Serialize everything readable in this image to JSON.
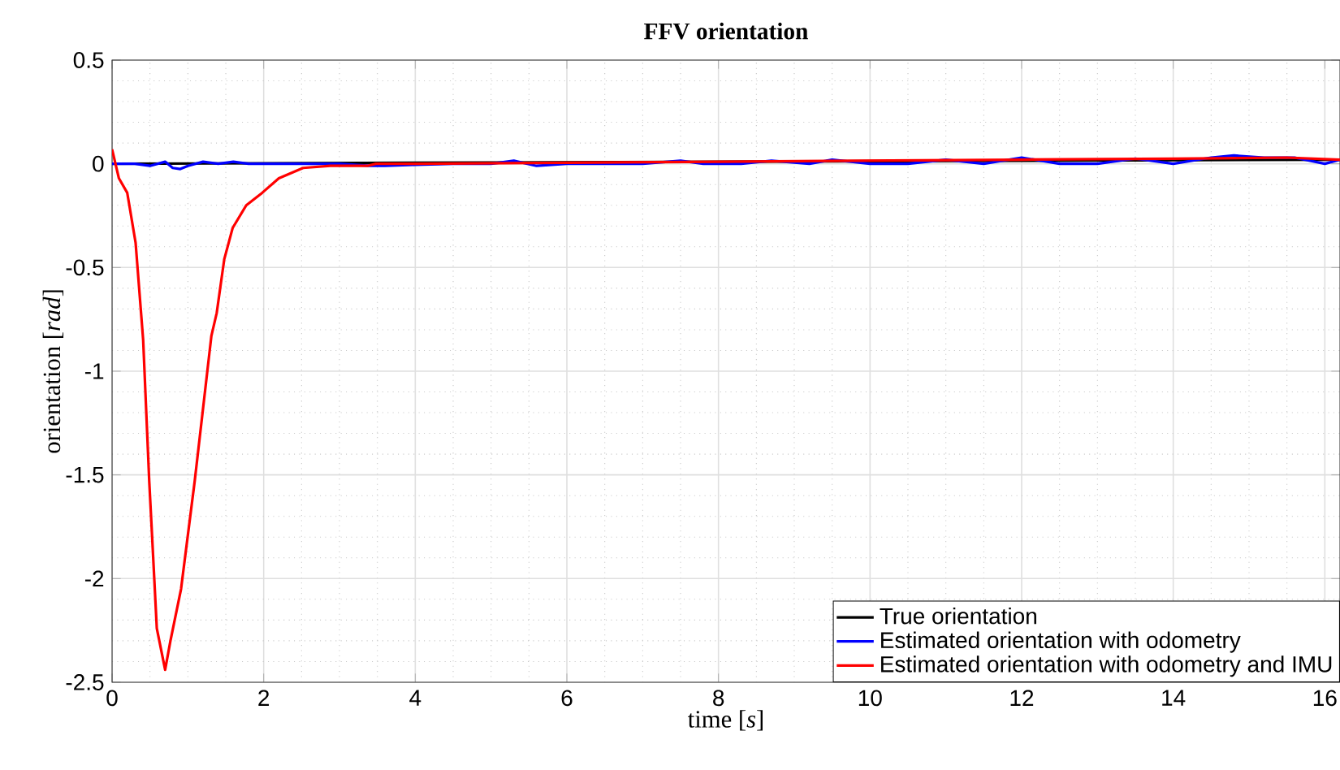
{
  "chart_data": {
    "type": "line",
    "title": "FFV orientation",
    "xlabel": "time [*s*]",
    "ylabel": "orientation [*rad*]",
    "xlim": [
      0,
      16.2
    ],
    "ylim": [
      -2.5,
      0.5
    ],
    "xticks": [
      0,
      2,
      4,
      6,
      8,
      10,
      12,
      14,
      16
    ],
    "yticks": [
      -2.5,
      -2,
      -1.5,
      -1,
      -0.5,
      0,
      0.5
    ],
    "grid": true,
    "legend": "bottom right",
    "line_style": "solid",
    "marker": "none",
    "series": [
      {
        "name": "True orientation",
        "color": "#000000",
        "x": [
          0,
          16.2
        ],
        "values": [
          0,
          0.02
        ]
      },
      {
        "name": "Estimated orientation with odometry",
        "color": "#0000ff",
        "x": [
          0,
          0.3,
          0.5,
          0.7,
          0.8,
          0.9,
          1.0,
          1.2,
          1.4,
          1.6,
          1.8,
          2.2,
          2.6,
          3.0,
          3.4,
          3.6,
          4.0,
          4.5,
          5.0,
          5.3,
          5.6,
          6.0,
          6.5,
          7.0,
          7.5,
          7.8,
          8.3,
          8.7,
          9.2,
          9.5,
          10.0,
          10.5,
          11.0,
          11.5,
          12.0,
          12.5,
          13.0,
          13.5,
          14.0,
          14.5,
          14.8,
          15.2,
          15.6,
          16.0,
          16.2
        ],
        "values": [
          0,
          0,
          -0.01,
          0.01,
          -0.02,
          -0.025,
          -0.01,
          0.01,
          0.0,
          0.01,
          0.0,
          0.0,
          0.0,
          0.0,
          -0.01,
          -0.01,
          -0.005,
          0.0,
          0.0,
          0.015,
          -0.01,
          0.0,
          0.0,
          0.0,
          0.015,
          0.0,
          0.0,
          0.015,
          0.0,
          0.02,
          0.0,
          0.0,
          0.02,
          0.0,
          0.03,
          0.0,
          0.0,
          0.025,
          0.0,
          0.03,
          0.04,
          0.03,
          0.03,
          0.0,
          0.02
        ]
      },
      {
        "name": "Estimated orientation with odometry and IMU",
        "color": "#ff0000",
        "x": [
          0,
          0.09,
          0.2,
          0.31,
          0.41,
          0.49,
          0.52,
          0.59,
          0.7,
          0.77,
          0.91,
          1.09,
          1.31,
          1.38,
          1.48,
          1.59,
          1.77,
          1.98,
          2.2,
          2.52,
          2.88,
          3.37,
          3.48,
          4.0,
          6.0,
          8.0,
          10.0,
          12.0,
          14.0,
          15.5,
          16.2
        ],
        "values": [
          0.07,
          -0.07,
          -0.14,
          -0.38,
          -0.85,
          -1.53,
          -1.74,
          -2.24,
          -2.44,
          -2.3,
          -2.05,
          -1.53,
          -0.83,
          -0.72,
          -0.46,
          -0.31,
          -0.2,
          -0.14,
          -0.07,
          -0.02,
          -0.01,
          -0.01,
          0.0,
          0.0,
          0.005,
          0.01,
          0.015,
          0.02,
          0.025,
          0.03,
          0.02
        ]
      }
    ]
  }
}
